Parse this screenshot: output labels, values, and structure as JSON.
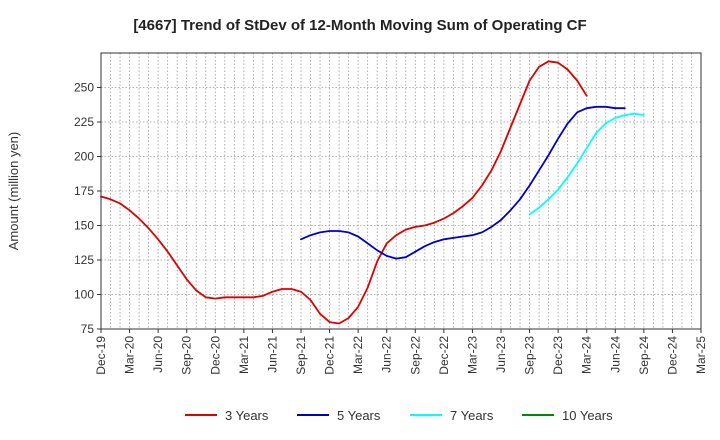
{
  "chart_data": {
    "type": "line",
    "title": "[4667]  Trend of StDev of 12-Month Moving Sum of Operating CF",
    "xlabel": "",
    "ylabel": "Amount (million yen)",
    "ylim": [
      75,
      275
    ],
    "yticks": [
      75,
      100,
      125,
      150,
      175,
      200,
      225,
      250
    ],
    "x_range_months": [
      0,
      63
    ],
    "xticks": [
      {
        "label": "Dec-19",
        "m": 0
      },
      {
        "label": "Mar-20",
        "m": 3
      },
      {
        "label": "Jun-20",
        "m": 6
      },
      {
        "label": "Sep-20",
        "m": 9
      },
      {
        "label": "Dec-20",
        "m": 12
      },
      {
        "label": "Mar-21",
        "m": 15
      },
      {
        "label": "Jun-21",
        "m": 18
      },
      {
        "label": "Sep-21",
        "m": 21
      },
      {
        "label": "Dec-21",
        "m": 24
      },
      {
        "label": "Mar-22",
        "m": 27
      },
      {
        "label": "Jun-22",
        "m": 30
      },
      {
        "label": "Sep-22",
        "m": 33
      },
      {
        "label": "Dec-22",
        "m": 36
      },
      {
        "label": "Mar-23",
        "m": 39
      },
      {
        "label": "Jun-23",
        "m": 42
      },
      {
        "label": "Sep-23",
        "m": 45
      },
      {
        "label": "Dec-23",
        "m": 48
      },
      {
        "label": "Mar-24",
        "m": 51
      },
      {
        "label": "Jun-24",
        "m": 54
      },
      {
        "label": "Sep-24",
        "m": 57
      },
      {
        "label": "Dec-24",
        "m": 60
      },
      {
        "label": "Mar-25",
        "m": 63
      }
    ],
    "grid": true,
    "legend_position": "bottom",
    "series": [
      {
        "name": "3 Years",
        "color": "#dd0000",
        "start_month": 0,
        "values": [
          171,
          169,
          166,
          161,
          155,
          148,
          140,
          131,
          121,
          111,
          103,
          98,
          97,
          98,
          98,
          98,
          98,
          99,
          102,
          104,
          104,
          102,
          96,
          86,
          80,
          79,
          83,
          91,
          105,
          124,
          137,
          143,
          147,
          149,
          150,
          152,
          155,
          159,
          164,
          170,
          179,
          190,
          204,
          221,
          238,
          255,
          265,
          269,
          268,
          263,
          255,
          244
        ]
      },
      {
        "name": "5 Years",
        "color": "#0000cc",
        "start_month": 21,
        "values": [
          140,
          143,
          145,
          146,
          146,
          145,
          142,
          137,
          132,
          128,
          126,
          127,
          131,
          135,
          138,
          140,
          141,
          142,
          143,
          145,
          149,
          154,
          161,
          169,
          179,
          190,
          201,
          213,
          224,
          232,
          235,
          236,
          236,
          235,
          235
        ]
      },
      {
        "name": "7 Years",
        "color": "#00ffff",
        "start_month": 45,
        "values": [
          158,
          163,
          169,
          176,
          185,
          195,
          206,
          217,
          224,
          228,
          230,
          231,
          230
        ]
      },
      {
        "name": "10 Years",
        "color": "#008800",
        "start_month": 0,
        "values": []
      }
    ]
  }
}
